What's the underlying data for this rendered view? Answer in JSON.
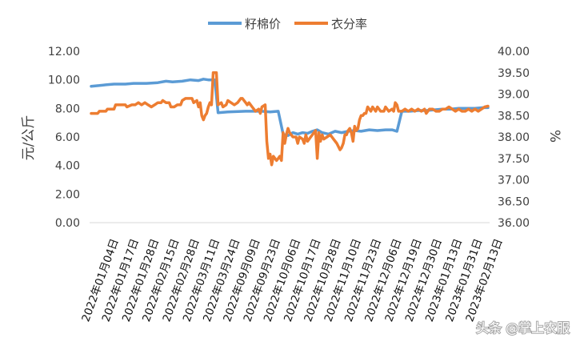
{
  "chart_data": {
    "type": "line",
    "title": "",
    "ylabel_left": "元/公斤",
    "ylabel_right": "%",
    "ylim_left": [
      0,
      12
    ],
    "ylim_right": [
      36,
      40
    ],
    "yticks_left": [
      "0.00",
      "2.00",
      "4.00",
      "6.00",
      "8.00",
      "10.00",
      "12.00"
    ],
    "yticks_right": [
      "36.00",
      "36.50",
      "37.00",
      "37.50",
      "38.00",
      "38.50",
      "39.00",
      "39.50",
      "40.00"
    ],
    "xticks": [
      "2022年01月04日",
      "2022年01月17日",
      "2022年01月28日",
      "2022年02月15日",
      "2022年02月28日",
      "2022年03月11日",
      "2022年03月24日",
      "2022年09月09日",
      "2022年09月23日",
      "2022年10月06日",
      "2022年10月17日",
      "2022年10月28日",
      "2022年11月10日",
      "2022年11月23日",
      "2022年12月06日",
      "2022年12月19日",
      "2022年12月30日",
      "2023年01月13日",
      "2023年01月31日",
      "2023年02月13日"
    ],
    "legend_position": "top",
    "grid": false,
    "watermark": "头条 @掌上农服",
    "series": [
      {
        "name": "籽棉价",
        "axis": "left",
        "color": "#5B9BD5",
        "values": [
          [
            0,
            9.55
          ],
          [
            5,
            9.6
          ],
          [
            9,
            9.65
          ],
          [
            14,
            9.7
          ],
          [
            21,
            9.7
          ],
          [
            26,
            9.75
          ],
          [
            34,
            9.75
          ],
          [
            41,
            9.8
          ],
          [
            46,
            9.9
          ],
          [
            50,
            9.85
          ],
          [
            56,
            9.9
          ],
          [
            61,
            10.0
          ],
          [
            66,
            9.95
          ],
          [
            69,
            10.05
          ],
          [
            72,
            10.0
          ],
          [
            76,
            10.0
          ],
          [
            78,
            7.7
          ],
          [
            84,
            7.75
          ],
          [
            95,
            7.8
          ],
          [
            105,
            7.8
          ],
          [
            110,
            7.75
          ],
          [
            115,
            7.8
          ],
          [
            118,
            6.2
          ],
          [
            121,
            6.1
          ],
          [
            124,
            6.3
          ],
          [
            127,
            6.2
          ],
          [
            130,
            6.3
          ],
          [
            133,
            6.25
          ],
          [
            136,
            6.4
          ],
          [
            139,
            6.5
          ],
          [
            142,
            6.3
          ],
          [
            146,
            6.2
          ],
          [
            150,
            6.4
          ],
          [
            154,
            6.3
          ],
          [
            158,
            6.4
          ],
          [
            162,
            6.45
          ],
          [
            166,
            6.4
          ],
          [
            171,
            6.5
          ],
          [
            176,
            6.45
          ],
          [
            181,
            6.5
          ],
          [
            185,
            6.5
          ],
          [
            188,
            6.4
          ],
          [
            191,
            7.8
          ],
          [
            196,
            7.8
          ],
          [
            201,
            7.85
          ],
          [
            206,
            7.85
          ],
          [
            211,
            7.9
          ],
          [
            216,
            7.95
          ],
          [
            221,
            7.95
          ],
          [
            226,
            8.0
          ],
          [
            231,
            8.0
          ],
          [
            236,
            8.0
          ],
          [
            241,
            8.05
          ],
          [
            244,
            8.05
          ]
        ]
      },
      {
        "name": "衣分率",
        "axis": "right",
        "color": "#ED7D31",
        "values": [
          [
            0,
            38.55
          ],
          [
            4,
            38.55
          ],
          [
            5,
            38.6
          ],
          [
            9,
            38.6
          ],
          [
            10,
            38.65
          ],
          [
            14,
            38.65
          ],
          [
            15,
            38.75
          ],
          [
            21,
            38.75
          ],
          [
            22,
            38.7
          ],
          [
            25,
            38.75
          ],
          [
            27,
            38.75
          ],
          [
            29,
            38.8
          ],
          [
            31,
            38.75
          ],
          [
            33,
            38.8
          ],
          [
            35,
            38.75
          ],
          [
            37,
            38.7
          ],
          [
            39,
            38.75
          ],
          [
            41,
            38.8
          ],
          [
            43,
            38.8
          ],
          [
            44,
            38.85
          ],
          [
            46,
            38.8
          ],
          [
            48,
            38.8
          ],
          [
            49,
            38.7
          ],
          [
            51,
            38.7
          ],
          [
            53,
            38.75
          ],
          [
            55,
            38.75
          ],
          [
            56,
            38.85
          ],
          [
            58,
            38.9
          ],
          [
            60,
            38.9
          ],
          [
            62,
            38.9
          ],
          [
            63,
            38.8
          ],
          [
            65,
            38.85
          ],
          [
            66,
            38.7
          ],
          [
            67,
            38.8
          ],
          [
            68,
            38.5
          ],
          [
            69,
            38.4
          ],
          [
            70,
            38.5
          ],
          [
            71,
            38.55
          ],
          [
            72,
            38.7
          ],
          [
            73,
            38.8
          ],
          [
            74,
            38.75
          ],
          [
            75,
            39.5
          ],
          [
            77,
            39.5
          ],
          [
            78,
            38.75
          ],
          [
            80,
            38.8
          ],
          [
            81,
            38.7
          ],
          [
            83,
            38.75
          ],
          [
            84,
            38.85
          ],
          [
            86,
            38.8
          ],
          [
            88,
            38.75
          ],
          [
            90,
            38.8
          ],
          [
            92,
            38.9
          ],
          [
            93,
            38.9
          ],
          [
            95,
            38.8
          ],
          [
            96,
            38.75
          ],
          [
            97,
            38.8
          ],
          [
            99,
            38.7
          ],
          [
            100,
            38.65
          ],
          [
            101,
            38.6
          ],
          [
            103,
            38.65
          ],
          [
            104,
            38.55
          ],
          [
            105,
            38.7
          ],
          [
            107,
            38.75
          ],
          [
            108,
            37.9
          ],
          [
            109,
            37.5
          ],
          [
            110,
            37.6
          ],
          [
            111,
            37.35
          ],
          [
            112,
            37.55
          ],
          [
            113,
            37.5
          ],
          [
            114,
            37.45
          ],
          [
            115,
            37.5
          ],
          [
            116,
            37.55
          ],
          [
            117,
            37.45
          ],
          [
            118,
            38.1
          ],
          [
            119,
            37.85
          ],
          [
            120,
            38.05
          ],
          [
            121,
            38.2
          ],
          [
            122,
            38.1
          ],
          [
            124,
            38.0
          ],
          [
            126,
            38.0
          ],
          [
            127,
            37.85
          ],
          [
            128,
            38.0
          ],
          [
            130,
            37.95
          ],
          [
            131,
            37.85
          ],
          [
            132,
            38.05
          ],
          [
            133,
            37.9
          ],
          [
            135,
            38.0
          ],
          [
            137,
            38.1
          ],
          [
            138,
            38.15
          ],
          [
            139,
            37.5
          ],
          [
            140,
            38.1
          ],
          [
            141,
            37.9
          ],
          [
            142,
            38.05
          ],
          [
            143,
            37.95
          ],
          [
            145,
            38.0
          ],
          [
            147,
            38.05
          ],
          [
            148,
            38.0
          ],
          [
            149,
            37.95
          ],
          [
            151,
            37.85
          ],
          [
            153,
            37.7
          ],
          [
            154,
            37.75
          ],
          [
            155,
            37.85
          ],
          [
            156,
            38.05
          ],
          [
            157,
            38.05
          ],
          [
            158,
            38.15
          ],
          [
            159,
            38.2
          ],
          [
            160,
            38.1
          ],
          [
            161,
            37.9
          ],
          [
            162,
            38.25
          ],
          [
            163,
            38.15
          ],
          [
            164,
            38.2
          ],
          [
            165,
            38.4
          ],
          [
            166,
            38.5
          ],
          [
            167,
            38.5
          ],
          [
            168,
            38.55
          ],
          [
            169,
            38.55
          ],
          [
            170,
            38.7
          ],
          [
            172,
            38.6
          ],
          [
            173,
            38.7
          ],
          [
            175,
            38.6
          ],
          [
            176,
            38.7
          ],
          [
            178,
            38.6
          ],
          [
            180,
            38.6
          ],
          [
            181,
            38.7
          ],
          [
            183,
            38.6
          ],
          [
            185,
            38.65
          ],
          [
            186,
            38.6
          ],
          [
            187,
            38.8
          ],
          [
            188,
            38.75
          ],
          [
            189,
            38.6
          ],
          [
            191,
            38.6
          ],
          [
            193,
            38.65
          ],
          [
            195,
            38.6
          ],
          [
            197,
            38.65
          ],
          [
            199,
            38.6
          ],
          [
            201,
            38.65
          ],
          [
            203,
            38.6
          ],
          [
            205,
            38.65
          ],
          [
            206,
            38.55
          ],
          [
            208,
            38.65
          ],
          [
            210,
            38.65
          ],
          [
            212,
            38.6
          ],
          [
            214,
            38.6
          ],
          [
            216,
            38.65
          ],
          [
            218,
            38.65
          ],
          [
            220,
            38.7
          ],
          [
            222,
            38.65
          ],
          [
            224,
            38.6
          ],
          [
            226,
            38.65
          ],
          [
            228,
            38.6
          ],
          [
            230,
            38.6
          ],
          [
            232,
            38.65
          ],
          [
            234,
            38.6
          ],
          [
            236,
            38.65
          ],
          [
            238,
            38.6
          ],
          [
            240,
            38.65
          ],
          [
            242,
            38.7
          ],
          [
            244,
            38.72
          ]
        ]
      }
    ]
  }
}
